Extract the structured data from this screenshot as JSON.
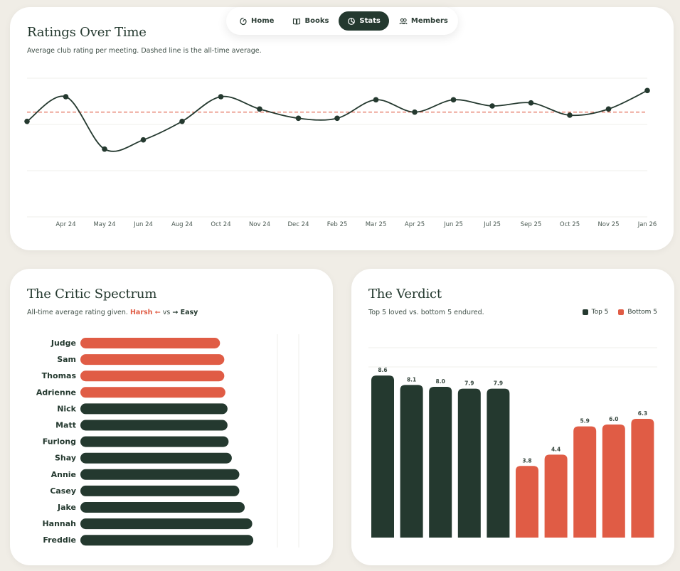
{
  "nav": {
    "items": [
      {
        "label": "Home",
        "icon": "home-icon",
        "active": false
      },
      {
        "label": "Books",
        "icon": "book-icon",
        "active": false
      },
      {
        "label": "Stats",
        "icon": "stats-icon",
        "active": true
      },
      {
        "label": "Members",
        "icon": "members-icon",
        "active": false
      }
    ]
  },
  "ratings": {
    "title": "Ratings Over Time",
    "subtitle": "Average club rating per meeting. Dashed line is the all-time average."
  },
  "critic": {
    "title": "The Critic Spectrum",
    "subtitle_prefix": "All-time average rating given.",
    "harsh_label": "Harsh ←",
    "vs_label": "vs",
    "easy_label": "→ Easy"
  },
  "verdict": {
    "title": "The Verdict",
    "subtitle": "Top 5 loved vs. bottom 5 endured.",
    "legend": [
      {
        "label": "Top 5",
        "color": "#24392f"
      },
      {
        "label": "Bottom 5",
        "color": "#e05c45"
      }
    ]
  },
  "colors": {
    "dark": "#24392f",
    "accent": "#e05c45",
    "grid": "#efefeb"
  },
  "chart_data": [
    {
      "type": "line",
      "title": "Ratings Over Time",
      "x": [
        "",
        "Apr 24",
        "May 24",
        "Jun 24",
        "Aug 24",
        "Oct 24",
        "Nov 24",
        "Dec 24",
        "Feb 25",
        "Mar 25",
        "Apr 25",
        "Jun 25",
        "Jul 25",
        "Sep 25",
        "Oct 25",
        "Nov 25",
        "Jan 26"
      ],
      "series": [
        {
          "values": [
            7.1,
            7.9,
            6.2,
            6.5,
            7.1,
            7.9,
            7.5,
            7.2,
            7.2,
            7.8,
            7.4,
            7.8,
            7.6,
            7.7,
            7.3,
            7.5,
            8.1
          ]
        }
      ],
      "average": 7.4,
      "ylim": [
        4,
        8.5
      ],
      "grid": true
    },
    {
      "type": "bar",
      "orientation": "horizontal",
      "title": "The Critic Spectrum",
      "categories": [
        "Judge",
        "Sam",
        "Thomas",
        "Adrienne",
        "Nick",
        "Matt",
        "Furlong",
        "Shay",
        "Annie",
        "Casey",
        "Jake",
        "Hannah",
        "Freddie"
      ],
      "values": [
        6.5,
        6.7,
        6.7,
        6.75,
        6.85,
        6.85,
        6.9,
        7.05,
        7.4,
        7.4,
        7.65,
        8.0,
        8.05
      ],
      "groups": [
        "Harsh",
        "Harsh",
        "Harsh",
        "Harsh",
        "Easy",
        "Easy",
        "Easy",
        "Easy",
        "Easy",
        "Easy",
        "Easy",
        "Easy",
        "Easy"
      ],
      "xlim": [
        0,
        10
      ]
    },
    {
      "type": "bar",
      "title": "The Verdict",
      "categories": [
        "",
        "",
        "",
        "",
        "",
        "",
        "",
        "",
        "",
        ""
      ],
      "values": [
        8.6,
        8.1,
        8.0,
        7.9,
        7.9,
        3.8,
        4.4,
        5.9,
        6.0,
        6.3
      ],
      "labels": [
        "8.6",
        "8.1",
        "8.0",
        "7.9",
        "7.9",
        "3.8",
        "4.4",
        "5.9",
        "6.0",
        "6.3"
      ],
      "groups": [
        "Top 5",
        "Top 5",
        "Top 5",
        "Top 5",
        "Top 5",
        "Bottom 5",
        "Bottom 5",
        "Bottom 5",
        "Bottom 5",
        "Bottom 5"
      ],
      "ylim": [
        0,
        10
      ],
      "legend": "top-right"
    }
  ]
}
